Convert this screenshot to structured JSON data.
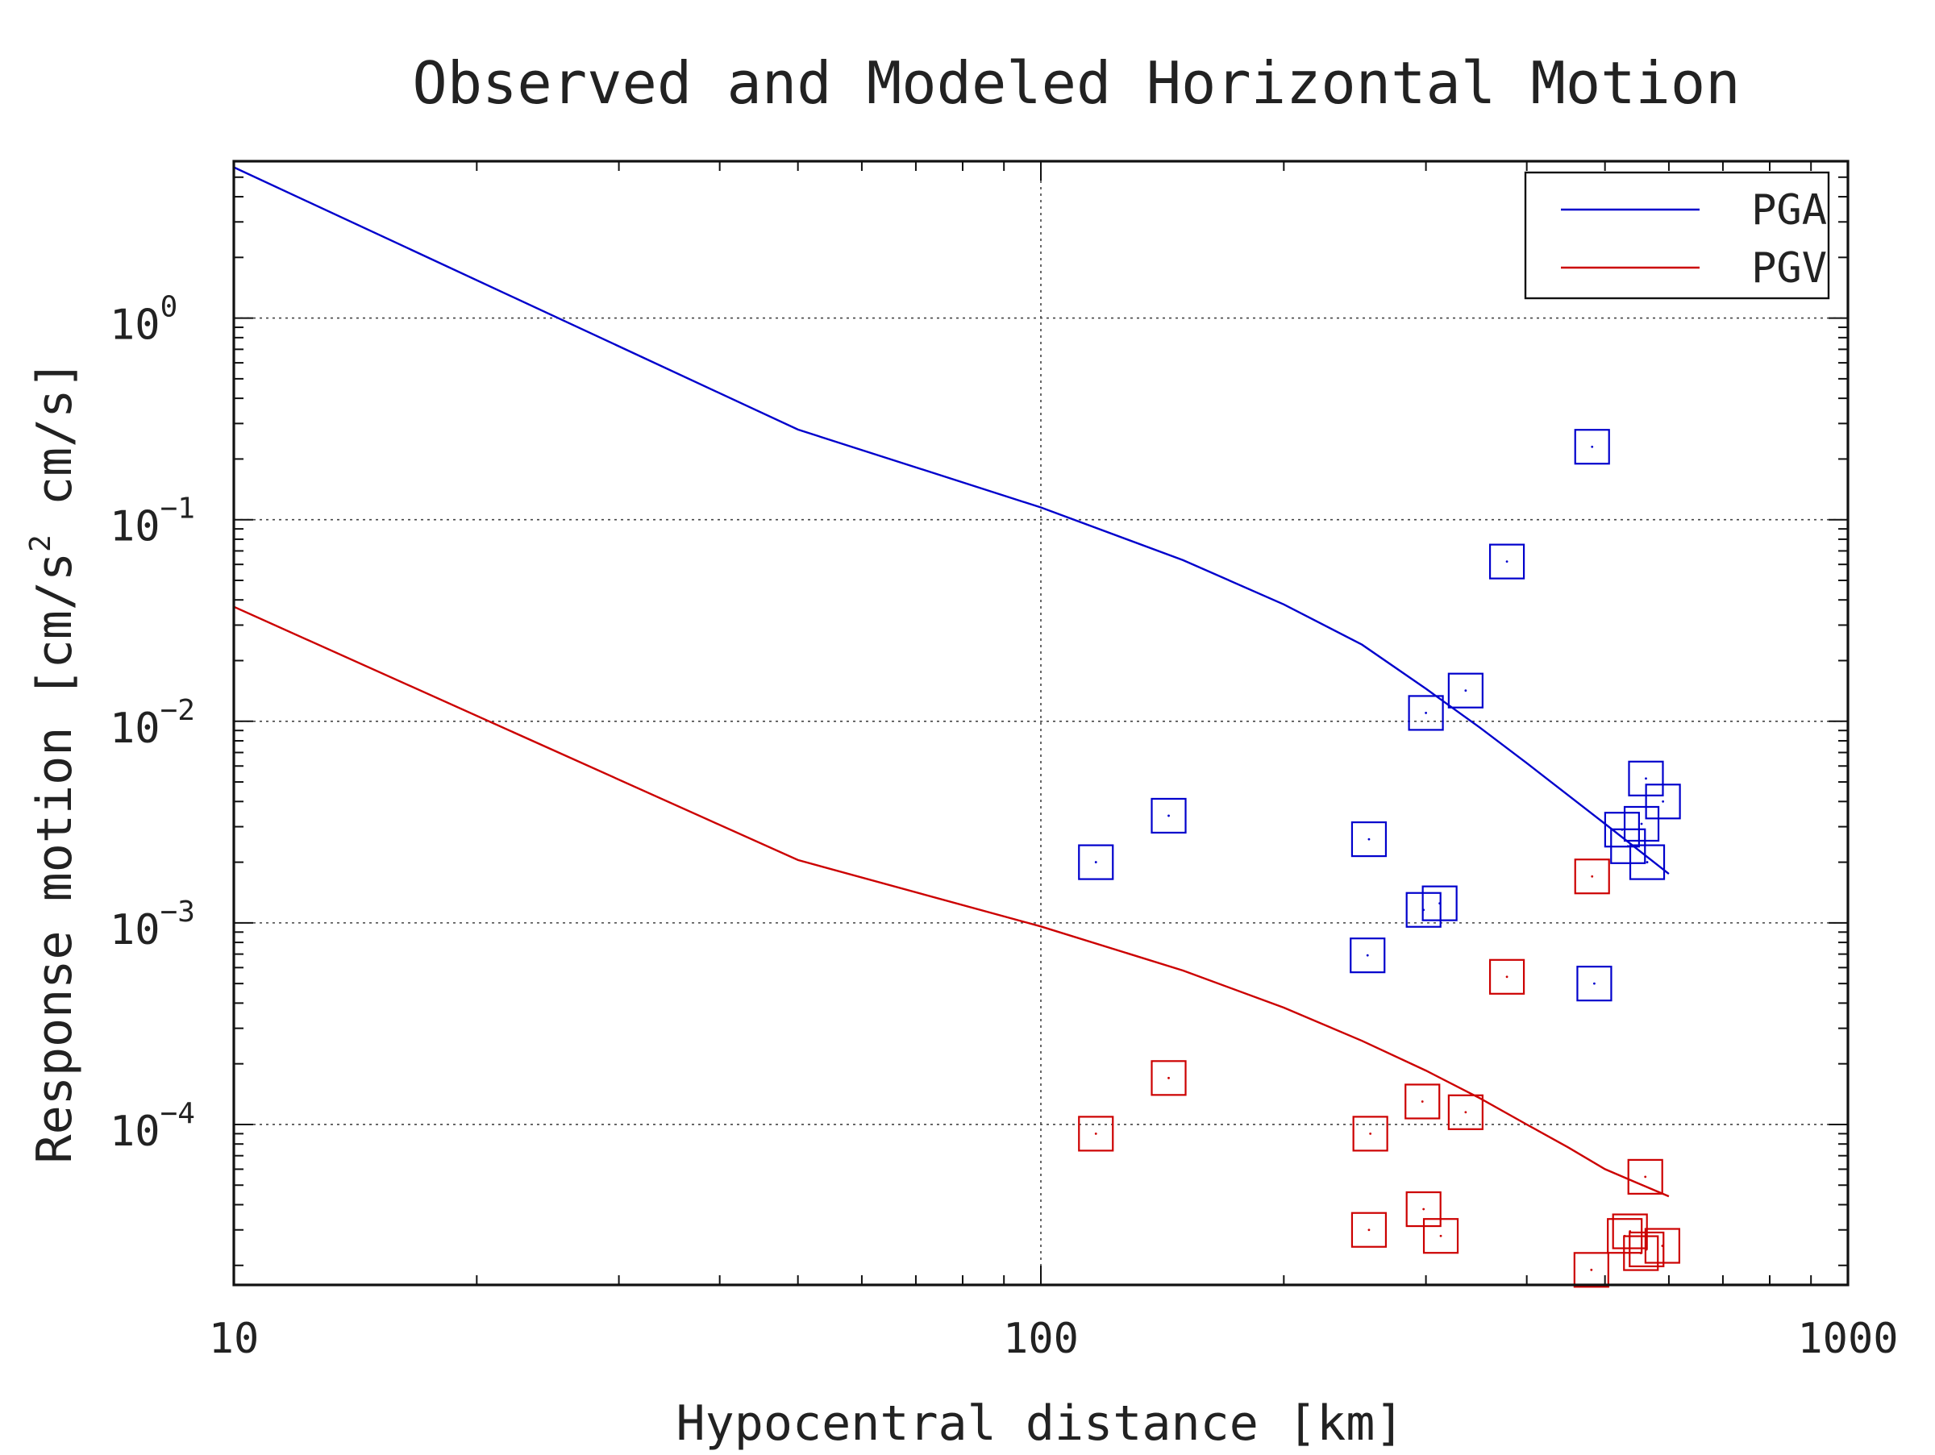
{
  "chart_data": {
    "type": "line",
    "title": "Observed and Modeled Horizontal Motion",
    "xlabel": "Hypocentral distance [km]",
    "ylabel": {
      "before": "Response motion  [cm/s",
      "sup": "2",
      "after": "  cm/s]"
    },
    "x_scale": "log",
    "y_scale": "log",
    "xlim": [
      10,
      1000
    ],
    "ylim": [
      1.6e-05,
      6
    ],
    "grid": true,
    "legend_placement": "top-right",
    "x_ticks": [
      {
        "value": 10,
        "label": "10"
      },
      {
        "value": 100,
        "label": "100"
      },
      {
        "value": 1000,
        "label": "1000"
      }
    ],
    "y_ticks": [
      {
        "value": 1,
        "base": "10",
        "exp": "0"
      },
      {
        "value": 0.1,
        "base": "10",
        "exp": "−1"
      },
      {
        "value": 0.01,
        "base": "10",
        "exp": "−2"
      },
      {
        "value": 0.001,
        "base": "10",
        "exp": "−3"
      },
      {
        "value": 0.0001,
        "base": "10",
        "exp": "−4"
      }
    ],
    "series": [
      {
        "name": "PGA",
        "color": "#0000cc",
        "kind": "line",
        "x": [
          10,
          50,
          100,
          150,
          200,
          250,
          300,
          350,
          400,
          450,
          500,
          550,
          600
        ],
        "y": [
          5.6,
          0.28,
          0.115,
          0.063,
          0.038,
          0.024,
          0.0145,
          0.0093,
          0.0062,
          0.0043,
          0.0031,
          0.0023,
          0.00175
        ]
      },
      {
        "name": "PGV",
        "color": "#cc0000",
        "kind": "line",
        "x": [
          10,
          50,
          100,
          150,
          200,
          250,
          300,
          350,
          400,
          450,
          500,
          550,
          600
        ],
        "y": [
          0.037,
          0.00205,
          0.00096,
          0.00058,
          0.00038,
          0.00026,
          0.000185,
          0.000135,
          0.0001,
          7.7e-05,
          6e-05,
          5.1e-05,
          4.4e-05
        ]
      },
      {
        "color": "#0000cc",
        "kind": "scatter",
        "x": [
          117,
          144,
          255,
          300,
          312,
          336,
          378,
          482,
          485,
          525,
          534,
          555,
          562,
          564,
          590
        ],
        "y": [
          0.002,
          0.0034,
          0.0026,
          0.011,
          0.00125,
          0.0142,
          0.062,
          0.23,
          0.0005,
          0.0029,
          0.0024,
          0.0031,
          0.0052,
          0.002,
          0.004
        ]
      },
      {
        "color": "#cc0000",
        "kind": "scatter",
        "x": [
          117,
          144,
          255,
          297,
          313,
          336,
          378,
          481,
          529,
          537,
          554,
          561,
          563,
          589
        ],
        "y": [
          9e-05,
          0.00017,
          3e-05,
          0.00013,
          2.8e-05,
          0.000115,
          0.00054,
          1.9e-05,
          2.8e-05,
          2.95e-05,
          2.3e-05,
          5.5e-05,
          2.4e-05,
          2.5e-05
        ]
      },
      {
        "color": "#0000cc",
        "kind": "scatter",
        "x": [
          254,
          298
        ],
        "y": [
          0.00069,
          0.00116
        ]
      },
      {
        "color": "#cc0000",
        "kind": "scatter",
        "x": [
          256,
          298,
          482
        ],
        "y": [
          9e-05,
          3.8e-05,
          0.0017
        ]
      }
    ]
  }
}
